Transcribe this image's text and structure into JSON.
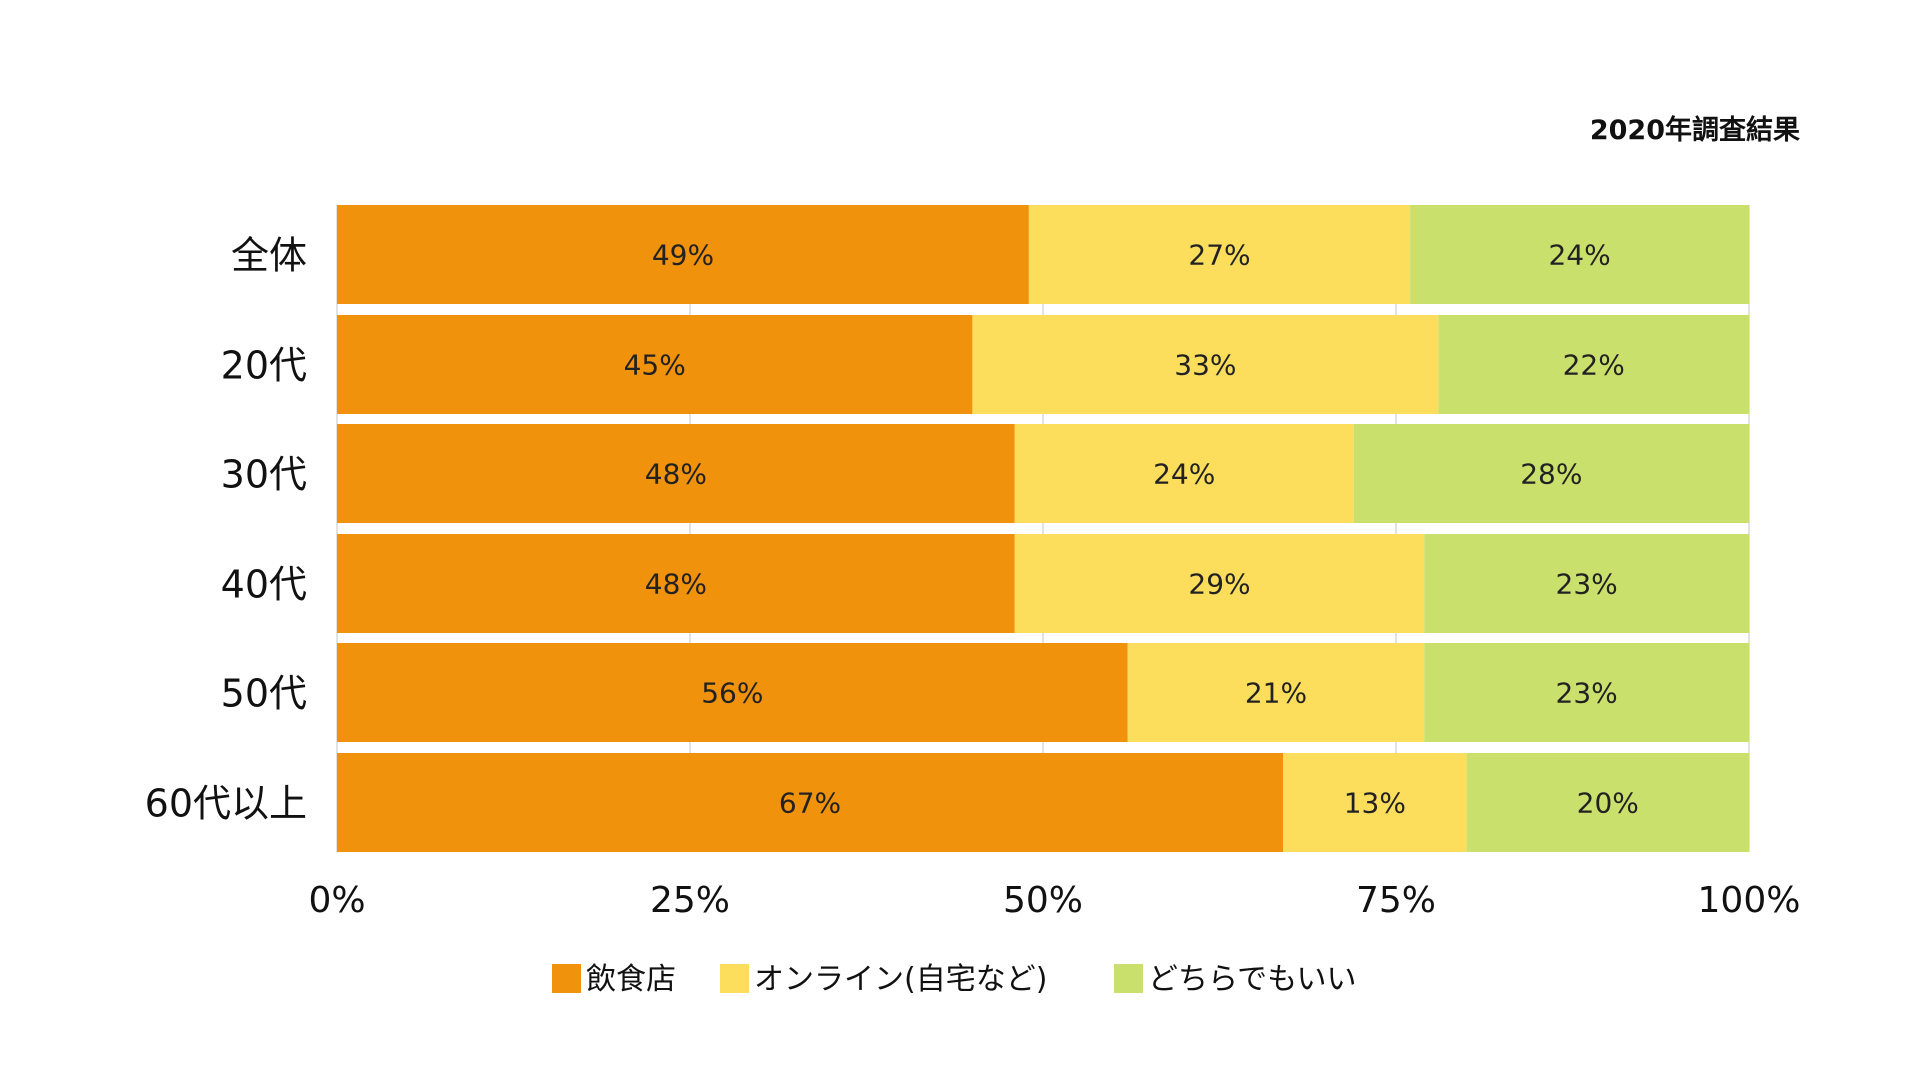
{
  "chart_data": {
    "type": "bar",
    "orientation": "horizontal",
    "stacked": true,
    "normalized": true,
    "title": "2020年調査結果",
    "categories": [
      "全体",
      "20代",
      "30代",
      "40代",
      "50代",
      "60代以上"
    ],
    "series": [
      {
        "name": "飲食店",
        "color": "#F0920C",
        "values": [
          49,
          45,
          48,
          48,
          56,
          67
        ]
      },
      {
        "name": "オンライン(自宅など)",
        "color": "#FDDD5C",
        "values": [
          27,
          33,
          24,
          29,
          21,
          13
        ]
      },
      {
        "name": "どちらでもいい",
        "color": "#C9E16C",
        "values": [
          24,
          22,
          28,
          23,
          23,
          20
        ]
      }
    ],
    "data_label_suffix": "%",
    "xlim": [
      0,
      100
    ],
    "xticks": [
      0,
      25,
      50,
      75,
      100
    ],
    "xtick_labels": [
      "0%",
      "25%",
      "50%",
      "75%",
      "100%"
    ],
    "grid": true,
    "legend_position": "bottom",
    "xlabel": "",
    "ylabel": ""
  }
}
